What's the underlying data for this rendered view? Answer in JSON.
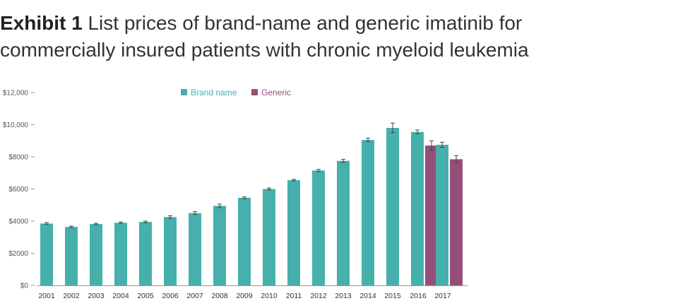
{
  "title": {
    "exhibit": "Exhibit 1",
    "text": "List prices of brand-name and generic imatinib for commercially insured patients with chronic myeloid leukemia"
  },
  "colors": {
    "brand": "#46b0ac",
    "generic": "#954e79",
    "axis": "#999999"
  },
  "chart_data": {
    "type": "bar",
    "title": "List prices of brand-name and generic imatinib for commercially insured patients with chronic myeloid leukemia",
    "xlabel": "",
    "ylabel": "",
    "ylim": [
      0,
      12000
    ],
    "yticks": [
      {
        "value": 0,
        "label": "$0"
      },
      {
        "value": 2000,
        "label": "$2000"
      },
      {
        "value": 4000,
        "label": "$4000"
      },
      {
        "value": 6000,
        "label": "$6000"
      },
      {
        "value": 8000,
        "label": "$8000"
      },
      {
        "value": 10000,
        "label": "$10,000"
      },
      {
        "value": 12000,
        "label": "$12,000"
      }
    ],
    "legend": [
      "Brand name",
      "Generic"
    ],
    "legend_position": "top-center",
    "categories": [
      "2001",
      "2002",
      "2003",
      "2004",
      "2005",
      "2006",
      "2007",
      "2008",
      "2009",
      "2010",
      "2011",
      "2012",
      "2013",
      "2014",
      "2015",
      "2016",
      "2017"
    ],
    "series": [
      {
        "name": "Brand name",
        "values": [
          3850,
          3640,
          3820,
          3900,
          3950,
          4250,
          4500,
          4950,
          5450,
          6000,
          6550,
          7150,
          7750,
          9050,
          9800,
          9550,
          8750
        ],
        "errors": [
          60,
          50,
          40,
          50,
          50,
          80,
          90,
          110,
          60,
          60,
          50,
          70,
          100,
          110,
          300,
          120,
          160
        ]
      },
      {
        "name": "Generic",
        "values": [
          null,
          null,
          null,
          null,
          null,
          null,
          null,
          null,
          null,
          null,
          null,
          null,
          null,
          null,
          null,
          8700,
          7850
        ],
        "errors": [
          null,
          null,
          null,
          null,
          null,
          null,
          null,
          null,
          null,
          null,
          null,
          null,
          null,
          null,
          null,
          300,
          220
        ]
      }
    ]
  }
}
